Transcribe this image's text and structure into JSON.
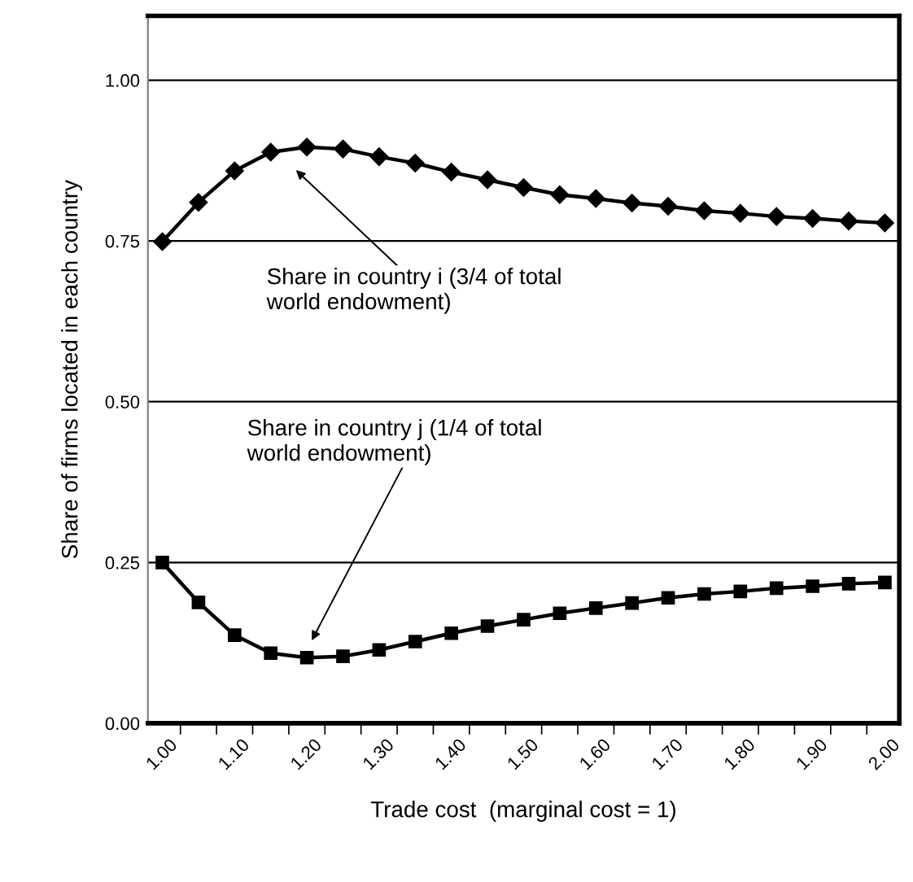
{
  "chart_data": {
    "type": "line",
    "xlabel": "Trade cost  (marginal cost = 1)",
    "ylabel": "Share of firms located in each country",
    "categories": [
      "1.00",
      null,
      "1.10",
      null,
      "1.20",
      null,
      "1.30",
      null,
      "1.40",
      null,
      "1.50",
      null,
      "1.60",
      null,
      "1.70",
      null,
      "1.80",
      null,
      "1.90",
      null,
      "2.00"
    ],
    "series": [
      {
        "color": "#000000",
        "marker": "diamond",
        "values": [
          0.749,
          0.81,
          0.859,
          0.888,
          0.896,
          0.893,
          0.881,
          0.871,
          0.857,
          0.845,
          0.833,
          0.822,
          0.816,
          0.809,
          0.804,
          0.797,
          0.793,
          0.788,
          0.785,
          0.781,
          0.778
        ]
      },
      {
        "color": "#000000",
        "marker": "square",
        "values": [
          0.25,
          0.188,
          0.137,
          0.109,
          0.102,
          0.104,
          0.114,
          0.127,
          0.14,
          0.151,
          0.161,
          0.171,
          0.179,
          0.187,
          0.195,
          0.201,
          0.205,
          0.21,
          0.213,
          0.217,
          0.219
        ]
      }
    ],
    "ylim": [
      0,
      1.1
    ],
    "yticks": [
      {
        "value": 0,
        "label": "0.00"
      },
      {
        "value": 0.25,
        "label": "0.25"
      },
      {
        "value": 0.5,
        "label": "0.50"
      },
      {
        "value": 0.75,
        "label": "0.75"
      },
      {
        "value": 1.0,
        "label": "1.00"
      }
    ],
    "grid": "y",
    "line_style": "solid",
    "legend": false,
    "annotations": [
      "Share in country i (3/4 of total\nworld endowment)",
      "Share in country j (1/4 of total\nworld endowment)"
    ]
  }
}
